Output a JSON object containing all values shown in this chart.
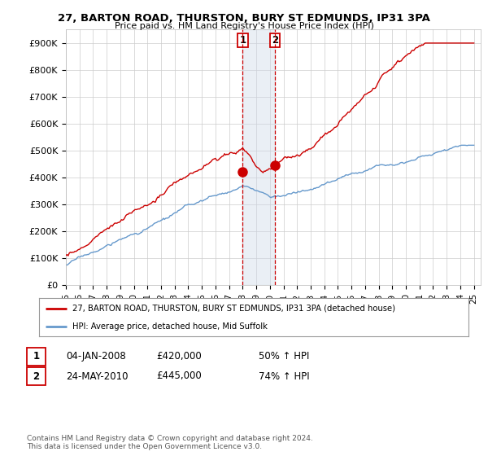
{
  "title": "27, BARTON ROAD, THURSTON, BURY ST EDMUNDS, IP31 3PA",
  "subtitle": "Price paid vs. HM Land Registry's House Price Index (HPI)",
  "ylabel_ticks": [
    "£0",
    "£100K",
    "£200K",
    "£300K",
    "£400K",
    "£500K",
    "£600K",
    "£700K",
    "£800K",
    "£900K"
  ],
  "ytick_values": [
    0,
    100000,
    200000,
    300000,
    400000,
    500000,
    600000,
    700000,
    800000,
    900000
  ],
  "ylim": [
    0,
    950000
  ],
  "xlim_start": 1995.0,
  "xlim_end": 2025.5,
  "red_line_color": "#cc0000",
  "blue_line_color": "#6699cc",
  "sale1_year": 2008.0,
  "sale1_value": 420000,
  "sale2_year": 2010.38,
  "sale2_value": 445000,
  "legend_line1": "27, BARTON ROAD, THURSTON, BURY ST EDMUNDS, IP31 3PA (detached house)",
  "legend_line2": "HPI: Average price, detached house, Mid Suffolk",
  "table_row1_date": "04-JAN-2008",
  "table_row1_price": "£420,000",
  "table_row1_hpi": "50% ↑ HPI",
  "table_row2_date": "24-MAY-2010",
  "table_row2_price": "£445,000",
  "table_row2_hpi": "74% ↑ HPI",
  "footnote": "Contains HM Land Registry data © Crown copyright and database right 2024.\nThis data is licensed under the Open Government Licence v3.0.",
  "background_color": "#ffffff",
  "plot_bg_color": "#ffffff",
  "grid_color": "#cccccc",
  "span_color": "#ccd8e8",
  "span_alpha": 0.4
}
